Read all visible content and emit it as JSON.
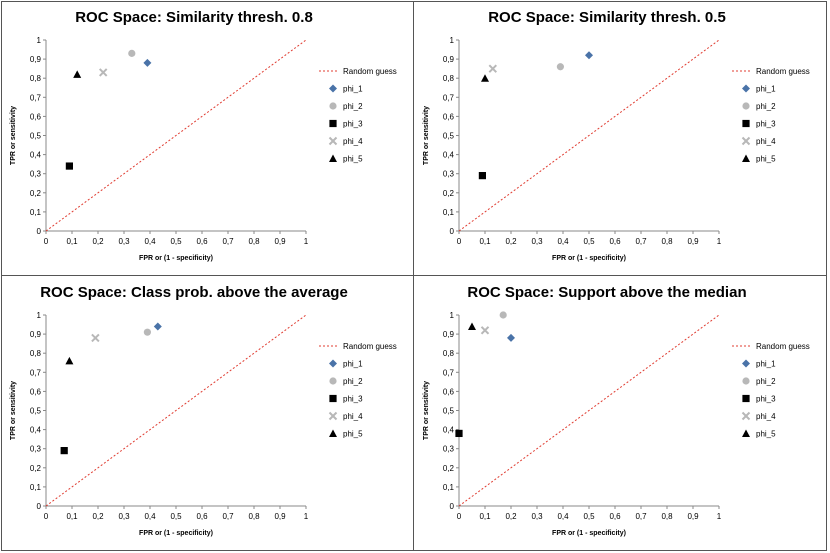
{
  "chart_data": [
    {
      "type": "scatter",
      "title": "ROC Space: Similarity thresh. 0.8",
      "xlabel": "FPR or (1 - specificity)",
      "ylabel": "TPR or sensitivity",
      "xlim": [
        0,
        1
      ],
      "ylim": [
        0,
        1
      ],
      "ticks": [
        "0",
        "0,1",
        "0,2",
        "0,3",
        "0,4",
        "0,5",
        "0,6",
        "0,7",
        "0,8",
        "0,9",
        "1"
      ],
      "reference_line": {
        "name": "Random guess",
        "from": [
          0,
          0
        ],
        "to": [
          1,
          1
        ],
        "color": "#e03c31",
        "style": "dotted"
      },
      "series": [
        {
          "name": "phi_1",
          "marker": "diamond",
          "color": "#4a73a8",
          "x": 0.39,
          "y": 0.88
        },
        {
          "name": "phi_2",
          "marker": "circle",
          "color": "#b8b8b8",
          "x": 0.33,
          "y": 0.93
        },
        {
          "name": "phi_3",
          "marker": "square",
          "color": "#000000",
          "x": 0.09,
          "y": 0.34
        },
        {
          "name": "phi_4",
          "marker": "x",
          "color": "#b8b8b8",
          "x": 0.22,
          "y": 0.83
        },
        {
          "name": "phi_5",
          "marker": "triangle",
          "color": "#000000",
          "x": 0.12,
          "y": 0.82
        }
      ]
    },
    {
      "type": "scatter",
      "title": "ROC Space: Similarity thresh. 0.5",
      "xlabel": "FPR or (1 - specificity)",
      "ylabel": "TPR or sensitivity",
      "xlim": [
        0,
        1
      ],
      "ylim": [
        0,
        1
      ],
      "ticks": [
        "0",
        "0,1",
        "0,2",
        "0,3",
        "0,4",
        "0,5",
        "0,6",
        "0,7",
        "0,8",
        "0,9",
        "1"
      ],
      "reference_line": {
        "name": "Random guess",
        "from": [
          0,
          0
        ],
        "to": [
          1,
          1
        ],
        "color": "#e03c31",
        "style": "dotted"
      },
      "series": [
        {
          "name": "phi_1",
          "marker": "diamond",
          "color": "#4a73a8",
          "x": 0.5,
          "y": 0.92
        },
        {
          "name": "phi_2",
          "marker": "circle",
          "color": "#b8b8b8",
          "x": 0.39,
          "y": 0.86
        },
        {
          "name": "phi_3",
          "marker": "square",
          "color": "#000000",
          "x": 0.09,
          "y": 0.29
        },
        {
          "name": "phi_4",
          "marker": "x",
          "color": "#b8b8b8",
          "x": 0.13,
          "y": 0.85
        },
        {
          "name": "phi_5",
          "marker": "triangle",
          "color": "#000000",
          "x": 0.1,
          "y": 0.8
        }
      ]
    },
    {
      "type": "scatter",
      "title": "ROC Space: Class prob. above the average",
      "xlabel": "FPR or (1 - specificity)",
      "ylabel": "TPR or sensitivity",
      "xlim": [
        0,
        1
      ],
      "ylim": [
        0,
        1
      ],
      "ticks": [
        "0",
        "0,1",
        "0,2",
        "0,3",
        "0,4",
        "0,5",
        "0,6",
        "0,7",
        "0,8",
        "0,9",
        "1"
      ],
      "reference_line": {
        "name": "Random guess",
        "from": [
          0,
          0
        ],
        "to": [
          1,
          1
        ],
        "color": "#e03c31",
        "style": "dotted"
      },
      "series": [
        {
          "name": "phi_1",
          "marker": "diamond",
          "color": "#4a73a8",
          "x": 0.43,
          "y": 0.94
        },
        {
          "name": "phi_2",
          "marker": "circle",
          "color": "#b8b8b8",
          "x": 0.39,
          "y": 0.91
        },
        {
          "name": "phi_3",
          "marker": "square",
          "color": "#000000",
          "x": 0.07,
          "y": 0.29
        },
        {
          "name": "phi_4",
          "marker": "x",
          "color": "#b8b8b8",
          "x": 0.19,
          "y": 0.88
        },
        {
          "name": "phi_5",
          "marker": "triangle",
          "color": "#000000",
          "x": 0.09,
          "y": 0.76
        }
      ]
    },
    {
      "type": "scatter",
      "title": "ROC Space: Support above the median",
      "xlabel": "FPR or (1 - specificity)",
      "ylabel": "TPR or sensitivity",
      "xlim": [
        0,
        1
      ],
      "ylim": [
        0,
        1
      ],
      "ticks": [
        "0",
        "0,1",
        "0,2",
        "0,3",
        "0,4",
        "0,5",
        "0,6",
        "0,7",
        "0,8",
        "0,9",
        "1"
      ],
      "reference_line": {
        "name": "Random guess",
        "from": [
          0,
          0
        ],
        "to": [
          1,
          1
        ],
        "color": "#e03c31",
        "style": "dotted"
      },
      "series": [
        {
          "name": "phi_1",
          "marker": "diamond",
          "color": "#4a73a8",
          "x": 0.2,
          "y": 0.88
        },
        {
          "name": "phi_2",
          "marker": "circle",
          "color": "#b8b8b8",
          "x": 0.17,
          "y": 1.0
        },
        {
          "name": "phi_3",
          "marker": "square",
          "color": "#000000",
          "x": 0.0,
          "y": 0.38
        },
        {
          "name": "phi_4",
          "marker": "x",
          "color": "#b8b8b8",
          "x": 0.1,
          "y": 0.92
        },
        {
          "name": "phi_5",
          "marker": "triangle",
          "color": "#000000",
          "x": 0.05,
          "y": 0.94
        }
      ]
    }
  ]
}
